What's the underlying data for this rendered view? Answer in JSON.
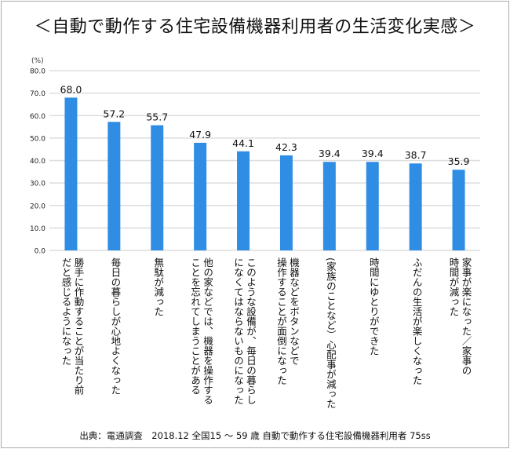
{
  "title": "＜自動で動作する住宅設備機器利用者の生活変化実感＞",
  "footer": "出典：電通調査　2018.12 全国15 ～ 59 歳 自動で動作する住宅設備機器利用者 75ss",
  "chart_data": {
    "type": "bar",
    "title": "＜自動で動作する住宅設備機器利用者の生活変化実感＞",
    "ylabel": "(%)",
    "ylim": [
      0,
      80
    ],
    "yticks": [
      "0.0",
      "10.0",
      "20.0",
      "30.0",
      "40.0",
      "50.0",
      "60.0",
      "70.0",
      "80.0"
    ],
    "grid": true,
    "bar_color": "#2f8de4",
    "categories": [
      "勝手に作動することが当たり前\nだと感じるようになった",
      "毎日の暮らしが心地よくなった",
      "無駄が減った",
      "他の家などでは、機器を操作する\nことを忘れてしまうことがある",
      "このような設備が、毎日の暮らし\nになくてはならないものになった",
      "機器などをボタンなどで\n操作することが面倒になった",
      "(家族のことなど）心配事が減った",
      "時間にゆとりができた",
      "ふだんの生活が楽しくなった",
      "家事が楽になった／家事の\n時間が減った"
    ],
    "values": [
      68.0,
      57.2,
      55.7,
      47.9,
      44.1,
      42.3,
      39.4,
      39.4,
      38.7,
      35.9
    ],
    "data_labels": [
      "68.0",
      "57.2",
      "55.7",
      "47.9",
      "44.1",
      "42.3",
      "39.4",
      "39.4",
      "38.7",
      "35.9"
    ]
  }
}
